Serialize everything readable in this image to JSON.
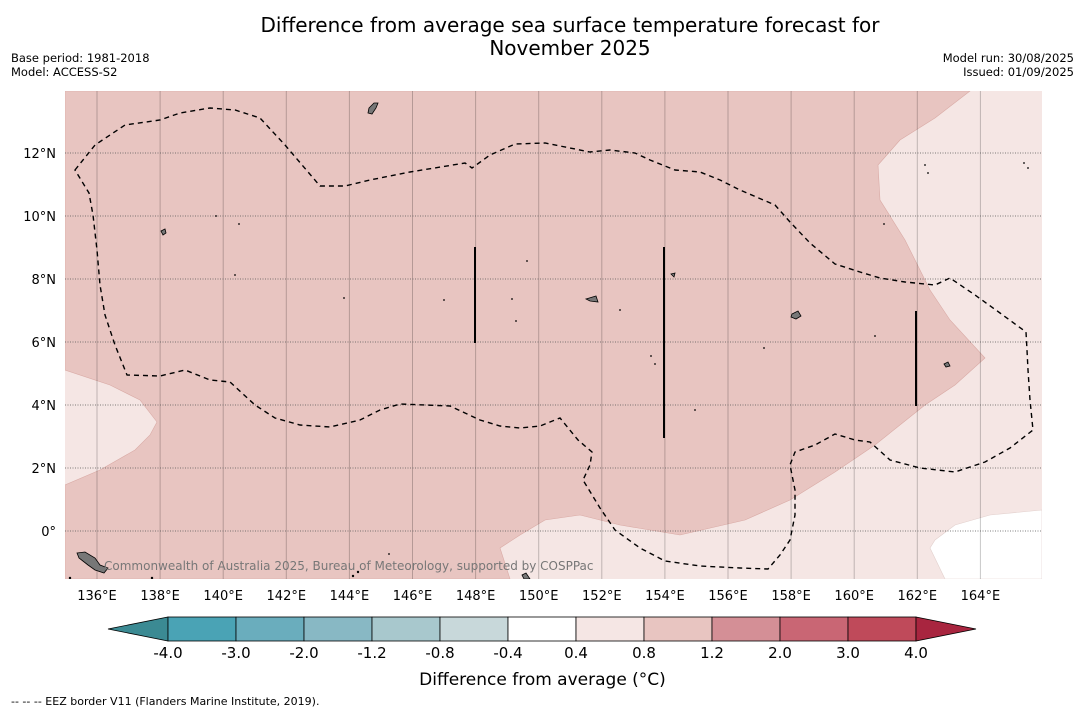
{
  "title_line1": "Difference from average sea surface temperature forecast for",
  "title_line2": "November 2025",
  "meta_left": [
    "Base period: 1981-2018",
    "Model: ACCESS-S2"
  ],
  "meta_right": [
    "Model run: 30/08/2025",
    "Issued: 01/09/2025"
  ],
  "lon_labels": [
    "136°E",
    "138°E",
    "140°E",
    "142°E",
    "144°E",
    "146°E",
    "148°E",
    "150°E",
    "152°E",
    "154°E",
    "156°E",
    "158°E",
    "160°E",
    "162°E",
    "164°E"
  ],
  "lat_labels": [
    "12°N",
    "10°N",
    "8°N",
    "6°N",
    "4°N",
    "2°N",
    "0°"
  ],
  "copyright": "Commonwealth of Australia 2025, Bureau of Meteorology, supported by COSPPac",
  "colorbar": {
    "title": "Difference from average (°C)",
    "tick_labels": [
      "-4.0",
      "-3.0",
      "-2.0",
      "-1.2",
      "-0.8",
      "-0.4",
      "0.4",
      "0.8",
      "1.2",
      "2.0",
      "3.0",
      "4.0"
    ],
    "colors": [
      "#3b8a93",
      "#4aa3b5",
      "#6aadbd",
      "#88b8c4",
      "#a8c8cd",
      "#c8d8da",
      "#ffffff",
      "#f5e6e4",
      "#e8c5c1",
      "#d48f96",
      "#c96674",
      "#bf4a5a",
      "#a8253f"
    ]
  },
  "footnote": "-- -- -- EEZ border V11 (Flanders Marine Institute, 2019).",
  "map_fill_colors": {
    "anomaly_0_4_to_0_8": "#f5e6e4",
    "anomaly_0_8_to_1_2": "#e8c5c1",
    "land": "#888888"
  }
}
